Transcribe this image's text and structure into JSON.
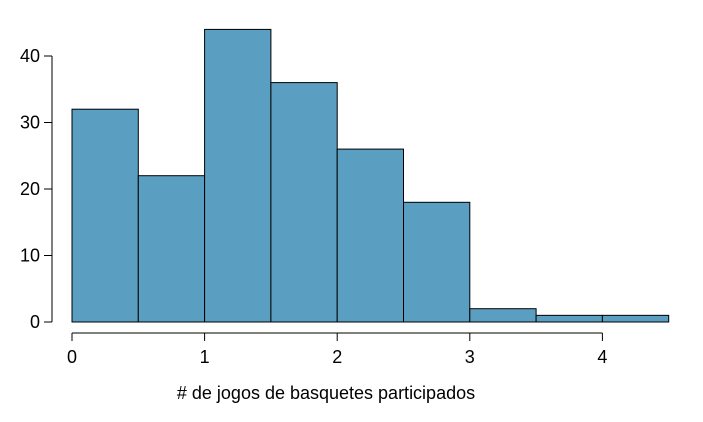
{
  "chart_data": {
    "type": "bar",
    "subtype": "histogram",
    "title": "",
    "xlabel": "# de jogos de basquetes participados",
    "ylabel": "",
    "bins": [
      {
        "start": 0.0,
        "end": 0.5,
        "value": 32
      },
      {
        "start": 0.5,
        "end": 1.0,
        "value": 22
      },
      {
        "start": 1.0,
        "end": 1.5,
        "value": 44
      },
      {
        "start": 1.5,
        "end": 2.0,
        "value": 36
      },
      {
        "start": 2.0,
        "end": 2.5,
        "value": 26
      },
      {
        "start": 2.5,
        "end": 3.0,
        "value": 18
      },
      {
        "start": 3.0,
        "end": 3.5,
        "value": 2
      },
      {
        "start": 3.5,
        "end": 4.0,
        "value": 1
      },
      {
        "start": 4.0,
        "end": 4.5,
        "value": 1
      }
    ],
    "xlim": [
      0,
      4.5
    ],
    "ylim": [
      0,
      44
    ],
    "xticks": [
      0,
      1,
      2,
      3,
      4
    ],
    "yticks": [
      0,
      10,
      20,
      30,
      40
    ],
    "bar_color": "#5a9fc1",
    "edge_color": "#000000",
    "grid": false,
    "legend": "none"
  }
}
